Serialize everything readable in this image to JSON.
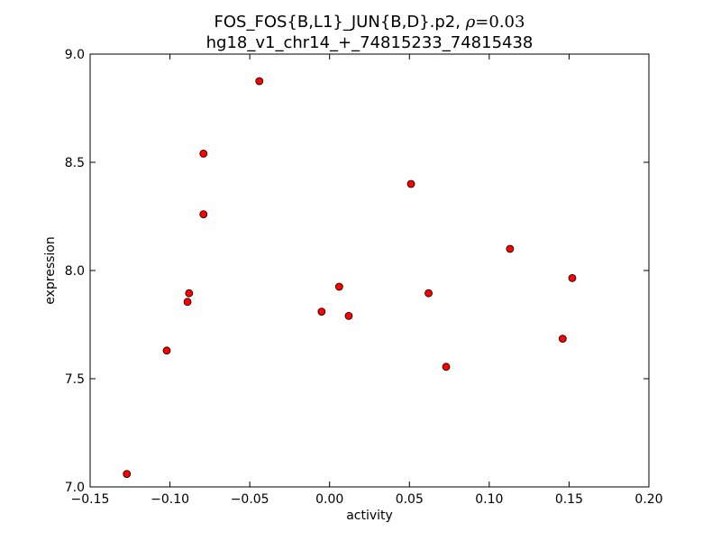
{
  "chart_data": {
    "type": "scatter",
    "title_prefix": "FOS_FOS{B,L1}_JUN{B,D}.p2, ",
    "title_rho_symbol": "ρ",
    "title_rho_eq": "=0.03",
    "subtitle": "hg18_v1_chr14_+_74815233_74815438",
    "xlabel": "activity",
    "ylabel": "expression",
    "xlim": [
      -0.15,
      0.2
    ],
    "ylim": [
      7.0,
      9.0
    ],
    "xticks": [
      -0.15,
      -0.1,
      -0.05,
      0.0,
      0.05,
      0.1,
      0.15,
      0.2
    ],
    "xtick_labels": [
      "−0.15",
      "−0.10",
      "−0.05",
      "0.00",
      "0.05",
      "0.10",
      "0.15",
      "0.20"
    ],
    "yticks": [
      7.0,
      7.5,
      8.0,
      8.5,
      9.0
    ],
    "ytick_labels": [
      "7.0",
      "7.5",
      "8.0",
      "8.5",
      "9.0"
    ],
    "grid": false,
    "marker_color": "#ff0000",
    "marker_edge": "#000000",
    "points": [
      {
        "x": -0.127,
        "y": 7.06
      },
      {
        "x": -0.102,
        "y": 7.63
      },
      {
        "x": -0.089,
        "y": 7.855
      },
      {
        "x": -0.088,
        "y": 7.895
      },
      {
        "x": -0.079,
        "y": 8.54
      },
      {
        "x": -0.079,
        "y": 8.26
      },
      {
        "x": -0.044,
        "y": 8.875
      },
      {
        "x": -0.005,
        "y": 7.81
      },
      {
        "x": 0.006,
        "y": 7.925
      },
      {
        "x": 0.012,
        "y": 7.79
      },
      {
        "x": 0.051,
        "y": 8.4
      },
      {
        "x": 0.062,
        "y": 7.895
      },
      {
        "x": 0.073,
        "y": 7.555
      },
      {
        "x": 0.113,
        "y": 8.1
      },
      {
        "x": 0.146,
        "y": 7.685
      },
      {
        "x": 0.152,
        "y": 7.965
      }
    ]
  }
}
